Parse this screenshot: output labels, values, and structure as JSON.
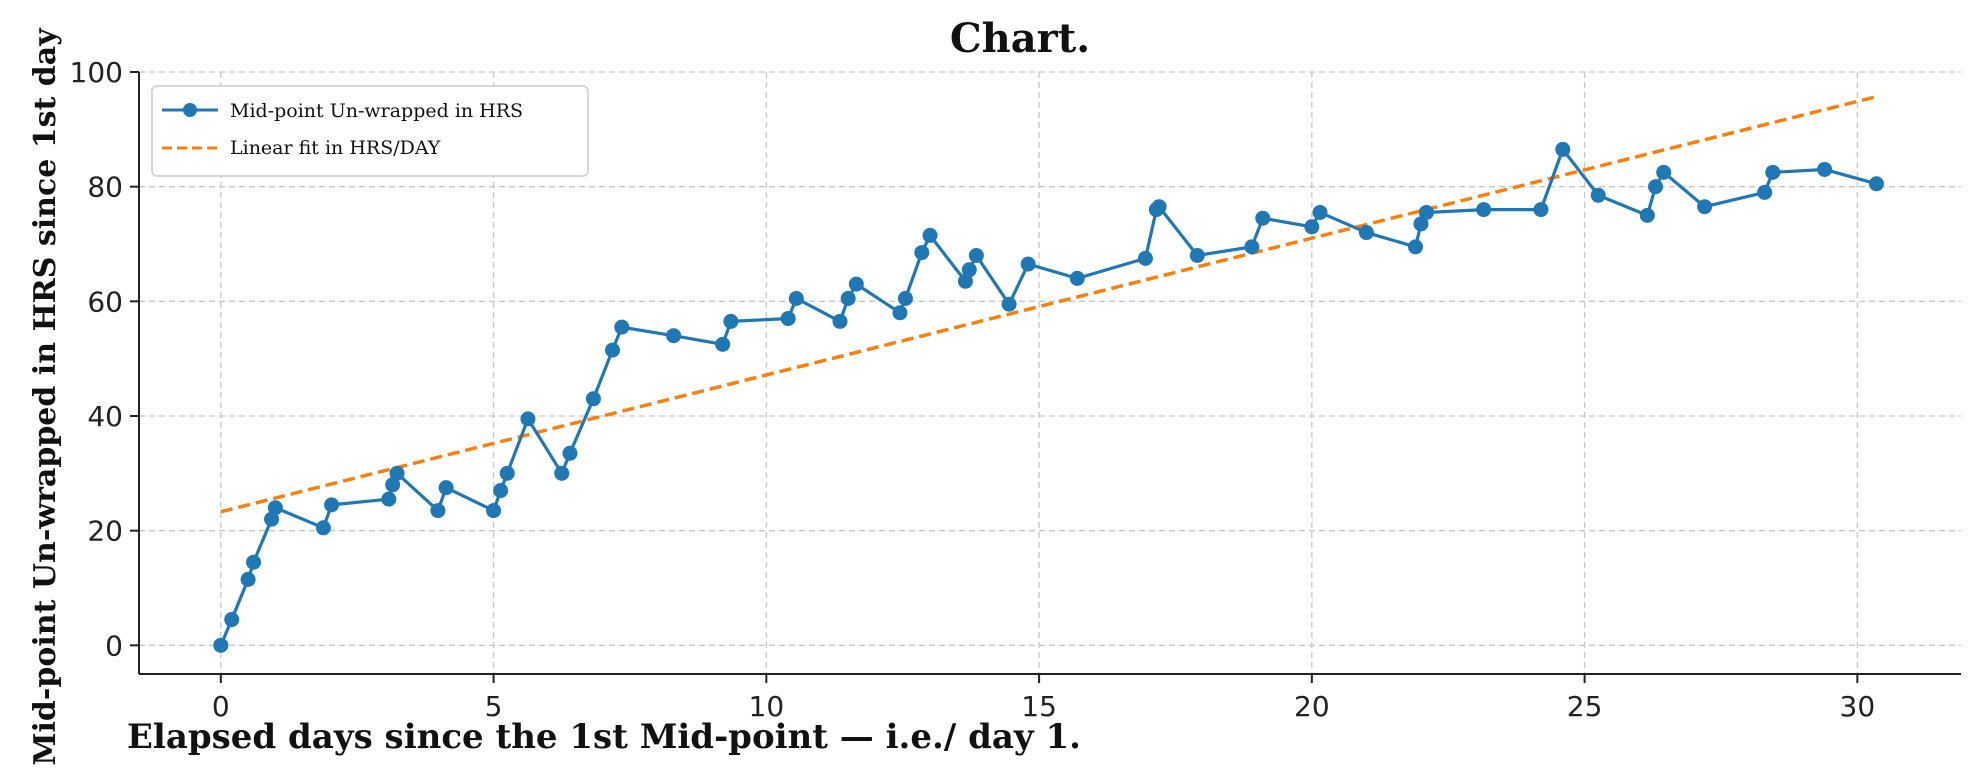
{
  "chart_data": {
    "type": "line",
    "title": "Chart.",
    "xlabel": "Elapsed days since the 1st Mid-point — i.e./ day 1.",
    "ylabel": "Mid-point Un-wrapped in HRS since 1st day",
    "xlim": [
      -1.5,
      31.9
    ],
    "ylim": [
      -5,
      100
    ],
    "x_ticks": [
      0,
      5,
      10,
      15,
      20,
      25,
      30
    ],
    "y_ticks": [
      0,
      20,
      40,
      60,
      80,
      100
    ],
    "grid": true,
    "legend_position": "top-left",
    "colors": {
      "series": "#1f77b4",
      "fit": "#ff7f0e"
    },
    "series": [
      {
        "name": "Mid-point Un-wrapped in HRS",
        "style": "line-markers",
        "x": [
          0,
          0.2,
          0.5,
          0.6,
          0.93,
          1.0,
          1.88,
          2.03,
          3.08,
          3.15,
          3.23,
          3.98,
          4.13,
          5.0,
          5.13,
          5.25,
          5.63,
          6.25,
          6.4,
          6.83,
          7.18,
          7.35,
          8.3,
          9.2,
          9.35,
          10.4,
          10.55,
          11.35,
          11.5,
          11.65,
          12.45,
          12.55,
          12.85,
          13.0,
          13.65,
          13.72,
          13.85,
          14.45,
          14.8,
          15.7,
          16.95,
          17.15,
          17.2,
          17.9,
          18.9,
          19.1,
          20.0,
          20.15,
          21.0,
          21.9,
          22.0,
          22.1,
          23.15,
          24.2,
          24.6,
          25.25,
          26.15,
          26.3,
          26.45,
          27.2,
          28.3,
          28.45,
          29.4,
          30.35
        ],
        "y": [
          0,
          4.5,
          11.5,
          14.5,
          22,
          24,
          20.5,
          24.5,
          25.5,
          28,
          30,
          23.5,
          27.5,
          23.5,
          27,
          30,
          39.5,
          30,
          33.5,
          43,
          51.5,
          55.5,
          54,
          52.5,
          56.5,
          57,
          60.5,
          56.5,
          60.5,
          63,
          58,
          60.5,
          68.5,
          71.5,
          63.5,
          65.5,
          68,
          59.5,
          66.5,
          64,
          67.5,
          76,
          76.5,
          68,
          69.5,
          74.5,
          73,
          75.5,
          72,
          69.5,
          73.5,
          75.5,
          76,
          76,
          86.5,
          78.5,
          75,
          80,
          82.5,
          76.5,
          79,
          82.5,
          83,
          80.5
        ]
      },
      {
        "name": "Linear fit in HRS/DAY",
        "style": "dashed",
        "x": [
          0,
          30.35
        ],
        "y": [
          23.3,
          95.7
        ]
      }
    ]
  }
}
